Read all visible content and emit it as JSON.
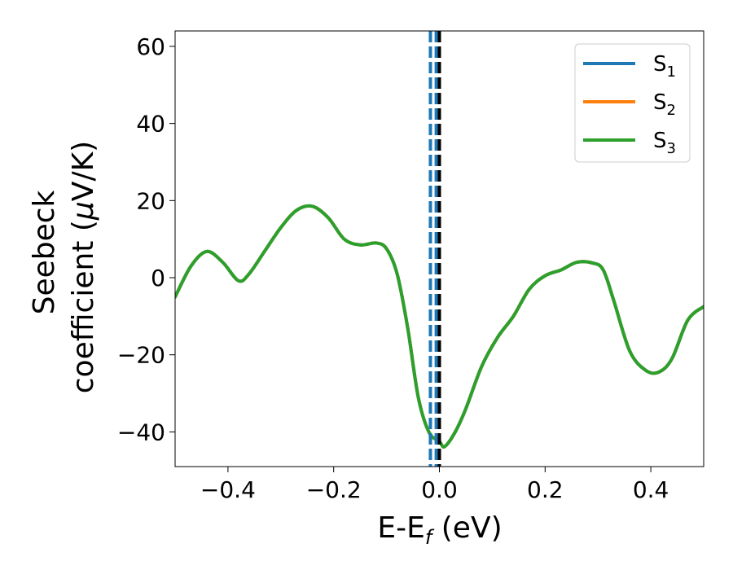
{
  "chart_data": {
    "type": "line",
    "xlabel": {
      "main": "E-E",
      "sub": "f",
      "unit": " (eV)"
    },
    "ylabel": {
      "line1": "Seebeck",
      "line2": "coefficient  (",
      "mu": "μ",
      "line2_end": "V/K)"
    },
    "xlim": [
      -0.5,
      0.5
    ],
    "ylim": [
      -49,
      64
    ],
    "xticks": [
      -0.4,
      -0.2,
      0.0,
      0.2,
      0.4
    ],
    "xtick_labels": [
      "−0.4",
      "−0.2",
      "0.0",
      "0.2",
      "0.4"
    ],
    "yticks": [
      -40,
      -20,
      0,
      20,
      40,
      60
    ],
    "ytick_labels": [
      "−40",
      "−20",
      "0",
      "20",
      "40",
      "60"
    ],
    "grid": false,
    "legend_position": "top-right",
    "series": [
      {
        "name": "S",
        "sub": "1",
        "color": "#1f77b4",
        "x": [
          -0.5,
          -0.47,
          -0.44,
          -0.41,
          -0.38,
          -0.36,
          -0.33,
          -0.3,
          -0.27,
          -0.24,
          -0.21,
          -0.18,
          -0.15,
          -0.12,
          -0.1,
          -0.08,
          -0.06,
          -0.04,
          -0.02,
          0.0,
          0.01,
          0.03,
          0.05,
          0.08,
          0.11,
          0.14,
          0.17,
          0.2,
          0.23,
          0.26,
          0.29,
          0.31,
          0.33,
          0.36,
          0.39,
          0.415,
          0.44,
          0.47,
          0.5
        ],
        "y": [
          -5,
          3,
          6.8,
          4,
          -0.8,
          1,
          7,
          13,
          17.5,
          18.5,
          15.5,
          10,
          8.5,
          9,
          7.5,
          1,
          -13,
          -31,
          -40,
          -42.5,
          -43.8,
          -40,
          -34,
          -23,
          -15.5,
          -10,
          -3,
          0.5,
          2,
          4,
          3.8,
          2,
          -6,
          -19,
          -24,
          -24.5,
          -21,
          -11,
          -7.5
        ]
      },
      {
        "name": "S",
        "sub": "2",
        "color": "#ff7f0e",
        "x": [
          -0.5,
          -0.47,
          -0.44,
          -0.41,
          -0.38,
          -0.36,
          -0.33,
          -0.3,
          -0.27,
          -0.24,
          -0.21,
          -0.18,
          -0.15,
          -0.12,
          -0.1,
          -0.08,
          -0.06,
          -0.04,
          -0.02,
          0.0,
          0.01,
          0.03,
          0.05,
          0.08,
          0.11,
          0.14,
          0.17,
          0.2,
          0.23,
          0.26,
          0.29,
          0.31,
          0.33,
          0.36,
          0.39,
          0.415,
          0.44,
          0.47,
          0.5
        ],
        "y": [
          -5,
          3,
          6.8,
          4,
          -0.8,
          1,
          7,
          13,
          17.5,
          18.5,
          15.5,
          10,
          8.5,
          9,
          7.5,
          1,
          -13,
          -31,
          -40,
          -42.5,
          -43.8,
          -40,
          -34,
          -23,
          -15.5,
          -10,
          -3,
          0.5,
          2,
          4,
          3.8,
          2,
          -6,
          -19,
          -24,
          -24.5,
          -21,
          -11,
          -7.5
        ]
      },
      {
        "name": "S",
        "sub": "3",
        "color": "#2ca02c",
        "x": [
          -0.5,
          -0.47,
          -0.44,
          -0.41,
          -0.38,
          -0.36,
          -0.33,
          -0.3,
          -0.27,
          -0.24,
          -0.21,
          -0.18,
          -0.15,
          -0.12,
          -0.1,
          -0.08,
          -0.06,
          -0.04,
          -0.02,
          0.0,
          0.01,
          0.03,
          0.05,
          0.08,
          0.11,
          0.14,
          0.17,
          0.2,
          0.23,
          0.26,
          0.29,
          0.31,
          0.33,
          0.36,
          0.39,
          0.415,
          0.44,
          0.47,
          0.5
        ],
        "y": [
          -5,
          3,
          6.8,
          4,
          -0.8,
          1,
          7,
          13,
          17.5,
          18.5,
          15.5,
          10,
          8.5,
          9,
          7.5,
          1,
          -13,
          -31,
          -40,
          -42.5,
          -43.8,
          -40,
          -34,
          -23,
          -15.5,
          -10,
          -3,
          0.5,
          2,
          4,
          3.8,
          2,
          -6,
          -19,
          -24,
          -24.5,
          -21,
          -11,
          -7.5
        ]
      }
    ],
    "vertical_lines": [
      {
        "x": -0.017,
        "color": "#1f77b4",
        "style": "dashed"
      },
      {
        "x": -0.006,
        "color": "#1f77b4",
        "style": "dashed"
      },
      {
        "x": 0.0,
        "color": "#000000",
        "style": "dashed"
      }
    ]
  }
}
